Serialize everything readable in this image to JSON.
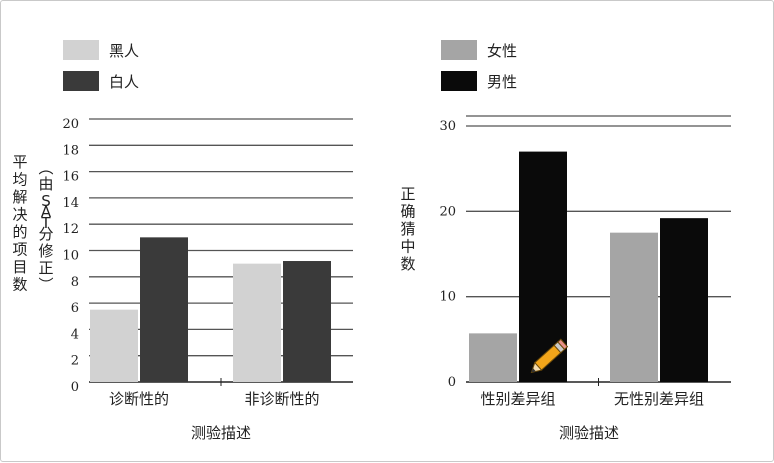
{
  "chart_data": [
    {
      "type": "bar",
      "categories": [
        "诊断性的",
        "非诊断性的"
      ],
      "series": [
        {
          "name": "黑人",
          "values": [
            5.5,
            9.0
          ],
          "color": "#d2d2d2"
        },
        {
          "name": "白人",
          "values": [
            11.0,
            9.2
          ],
          "color": "#3a3a3a"
        }
      ],
      "ylim": [
        0,
        20
      ],
      "yticks": [
        "0",
        "2",
        "4",
        "6",
        "8",
        "10",
        "12",
        "14",
        "16",
        "18",
        "20"
      ],
      "xlabel": "测验描述",
      "ylabel": "平均解决的项目数",
      "ylabel2": "（由SAT分修正）",
      "grid": true,
      "legend": "top-left"
    },
    {
      "type": "bar",
      "categories": [
        "性别差异组",
        "无性别差异组"
      ],
      "series": [
        {
          "name": "女性",
          "values": [
            5.7,
            17.5
          ],
          "color": "#a5a5a5"
        },
        {
          "name": "男性",
          "values": [
            27.0,
            19.2
          ],
          "color": "#0a0a0a"
        }
      ],
      "ylim": [
        0,
        30
      ],
      "yticks": [
        "0",
        "10",
        "20",
        "30"
      ],
      "xlabel": "测验描述",
      "ylabel": "正确猜中数",
      "grid": true,
      "legend": "top-left"
    }
  ],
  "overlay": {
    "icon": "pencil-icon"
  }
}
